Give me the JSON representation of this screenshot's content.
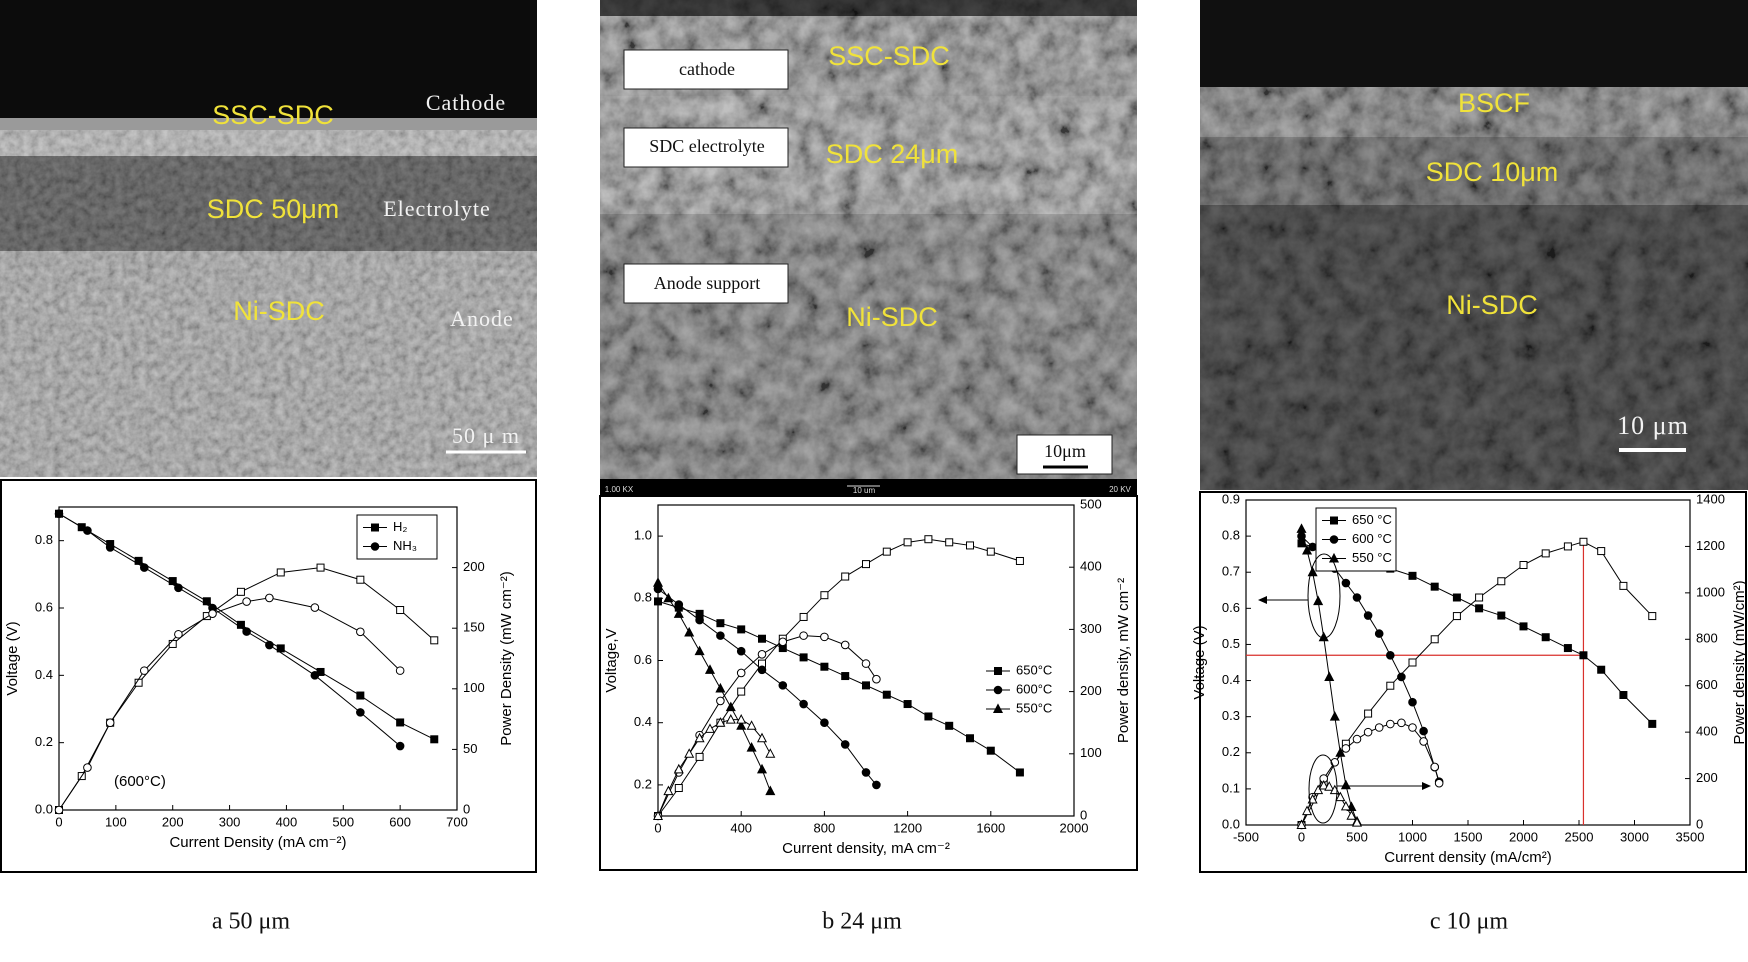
{
  "images": [
    {
      "labels": [
        "SSC-SDC",
        "Cathode",
        "SDC  50μm",
        "Electrolyte",
        "Ni-SDC",
        "Anode",
        "50 μ m"
      ]
    },
    {
      "labels": [
        "cathode",
        "SSC-SDC",
        "SDC electrolyte",
        "SDC  24μm",
        "Anode support",
        "Ni-SDC",
        "10μm",
        "1.00 KX",
        "10 um",
        "20 KV"
      ]
    },
    {
      "labels": [
        "BSCF",
        "SDC  10μm",
        "Ni-SDC",
        "10 μm"
      ]
    }
  ],
  "captions": [
    "a  50 μm",
    "b  24 μm",
    "c  10 μm"
  ],
  "chart_data": [
    {
      "type": "line",
      "x_label": "Current Density (mA cm⁻²)",
      "y_label": "Voltage (V)",
      "y2_label": "Power Density (mW cm⁻²)",
      "annotation": "(600°C)",
      "legend": "upper right",
      "legend_box": true,
      "xlim": [
        0,
        700
      ],
      "xticks": [
        0,
        100,
        200,
        300,
        400,
        500,
        600,
        700
      ],
      "ylim": [
        0,
        0.9
      ],
      "yticks": [
        {
          "value": 0,
          "label": "0.0"
        },
        0.2,
        0.4,
        0.6,
        0.8
      ],
      "y2lim": [
        0,
        250
      ],
      "y2ticks": [
        0,
        50,
        100,
        150,
        200
      ],
      "series": [
        {
          "name": "H₂",
          "marker": "square",
          "color": "#000000",
          "x": [
            0,
            40,
            90,
            140,
            200,
            260,
            320,
            390,
            460,
            530,
            600,
            660
          ],
          "values": [
            0.88,
            0.84,
            0.79,
            0.74,
            0.68,
            0.62,
            0.55,
            0.48,
            0.41,
            0.34,
            0.26,
            0.21
          ],
          "power": [
            0,
            28,
            72,
            105,
            137,
            160,
            180,
            196,
            200,
            190,
            165,
            140
          ]
        },
        {
          "name": "NH₃",
          "marker": "circle",
          "color": "#000000",
          "x": [
            0,
            50,
            90,
            150,
            210,
            270,
            330,
            370,
            450,
            530,
            600
          ],
          "values": [
            0.88,
            0.83,
            0.78,
            0.72,
            0.66,
            0.6,
            0.53,
            0.49,
            0.4,
            0.29,
            0.19
          ],
          "power": [
            0,
            35,
            72,
            115,
            145,
            162,
            172,
            175,
            167,
            147,
            115
          ]
        }
      ]
    },
    {
      "type": "line",
      "x_label": "Current density,  mA cm⁻²",
      "y_label": "Voltage,V",
      "y2_label": "Power density,  mW cm⁻²",
      "legend": "center right",
      "legend_box": false,
      "xlim": [
        0,
        2000
      ],
      "xticks": [
        0,
        400,
        800,
        1200,
        1600,
        2000
      ],
      "ylim": [
        0.1,
        1.1
      ],
      "yticks": [
        0.2,
        0.4,
        0.6,
        0.8,
        {
          "value": 1,
          "label": "1.0"
        }
      ],
      "y2lim": [
        0,
        500
      ],
      "y2ticks": [
        0,
        100,
        200,
        300,
        400,
        500
      ],
      "series": [
        {
          "name": "650°C",
          "marker": "square",
          "color": "#000000",
          "x": [
            0,
            100,
            200,
            300,
            400,
            500,
            600,
            700,
            800,
            900,
            1000,
            1100,
            1200,
            1300,
            1400,
            1500,
            1600,
            1740
          ],
          "values": [
            0.79,
            0.77,
            0.75,
            0.72,
            0.7,
            0.67,
            0.64,
            0.61,
            0.58,
            0.55,
            0.52,
            0.49,
            0.46,
            0.42,
            0.39,
            0.35,
            0.31,
            0.24
          ],
          "power": [
            0,
            45,
            95,
            150,
            200,
            245,
            285,
            320,
            355,
            385,
            405,
            425,
            440,
            445,
            440,
            435,
            425,
            410
          ]
        },
        {
          "name": "600°C",
          "marker": "circle",
          "color": "#000000",
          "x": [
            0,
            100,
            200,
            300,
            400,
            500,
            600,
            700,
            800,
            900,
            1000,
            1050
          ],
          "values": [
            0.83,
            0.78,
            0.73,
            0.68,
            0.63,
            0.57,
            0.52,
            0.46,
            0.4,
            0.33,
            0.24,
            0.2
          ],
          "power": [
            0,
            70,
            130,
            185,
            230,
            260,
            280,
            290,
            288,
            275,
            245,
            220
          ]
        },
        {
          "name": "550°C",
          "marker": "triangle",
          "color": "#000000",
          "x": [
            0,
            50,
            100,
            150,
            200,
            250,
            300,
            350,
            400,
            450,
            500,
            540
          ],
          "values": [
            0.85,
            0.8,
            0.75,
            0.69,
            0.63,
            0.57,
            0.51,
            0.45,
            0.39,
            0.32,
            0.25,
            0.18
          ],
          "power": [
            0,
            40,
            75,
            100,
            125,
            140,
            150,
            155,
            155,
            145,
            125,
            100
          ]
        }
      ]
    },
    {
      "type": "line",
      "x_label": "Current density (mA/cm²)",
      "y_label": "Voltage (V)",
      "y2_label": "Power density (mW/cm²)",
      "legend": "upper left",
      "legend_box": true,
      "xlim": [
        -500,
        3500
      ],
      "xticks": [
        -500,
        0,
        500,
        1000,
        1500,
        2000,
        2500,
        3000,
        3500
      ],
      "ylim": [
        0,
        0.9
      ],
      "yticks": [
        {
          "value": 0,
          "label": "0.0"
        },
        0.1,
        0.2,
        0.3,
        0.4,
        0.5,
        0.6,
        0.7,
        0.8,
        0.9
      ],
      "y2lim": [
        0,
        1400
      ],
      "y2ticks": [
        0,
        200,
        400,
        600,
        800,
        1000,
        1200,
        1400
      ],
      "reference": {
        "x": 2540,
        "y": 0.47,
        "color": "#d9302c"
      },
      "series": [
        {
          "name": "650 °C",
          "marker": "square",
          "color": "#000000",
          "x": [
            0,
            200,
            400,
            600,
            800,
            1000,
            1200,
            1400,
            1600,
            1800,
            2000,
            2200,
            2400,
            2540,
            2700,
            2900,
            3160
          ],
          "values": [
            0.78,
            0.76,
            0.75,
            0.73,
            0.71,
            0.69,
            0.66,
            0.63,
            0.6,
            0.58,
            0.55,
            0.52,
            0.49,
            0.47,
            0.43,
            0.36,
            0.28
          ],
          "power": [
            0,
            180,
            350,
            480,
            600,
            700,
            800,
            900,
            980,
            1050,
            1120,
            1170,
            1200,
            1220,
            1180,
            1030,
            900
          ]
        },
        {
          "name": "600 °C",
          "marker": "circle",
          "color": "#000000",
          "x": [
            0,
            100,
            200,
            300,
            400,
            500,
            600,
            700,
            800,
            900,
            1000,
            1100,
            1200,
            1240
          ],
          "values": [
            0.8,
            0.77,
            0.74,
            0.71,
            0.67,
            0.63,
            0.58,
            0.53,
            0.47,
            0.41,
            0.34,
            0.26,
            0.16,
            0.12
          ],
          "power": [
            0,
            120,
            200,
            270,
            330,
            370,
            400,
            420,
            435,
            440,
            420,
            360,
            250,
            180
          ]
        },
        {
          "name": "550 °C",
          "marker": "triangle",
          "color": "#000000",
          "x": [
            0,
            50,
            100,
            150,
            200,
            250,
            300,
            350,
            400,
            450,
            500
          ],
          "values": [
            0.82,
            0.76,
            0.7,
            0.62,
            0.52,
            0.41,
            0.3,
            0.2,
            0.11,
            0.05,
            0.01
          ],
          "power": [
            0,
            60,
            110,
            150,
            170,
            165,
            150,
            120,
            80,
            40,
            10
          ]
        }
      ]
    }
  ]
}
